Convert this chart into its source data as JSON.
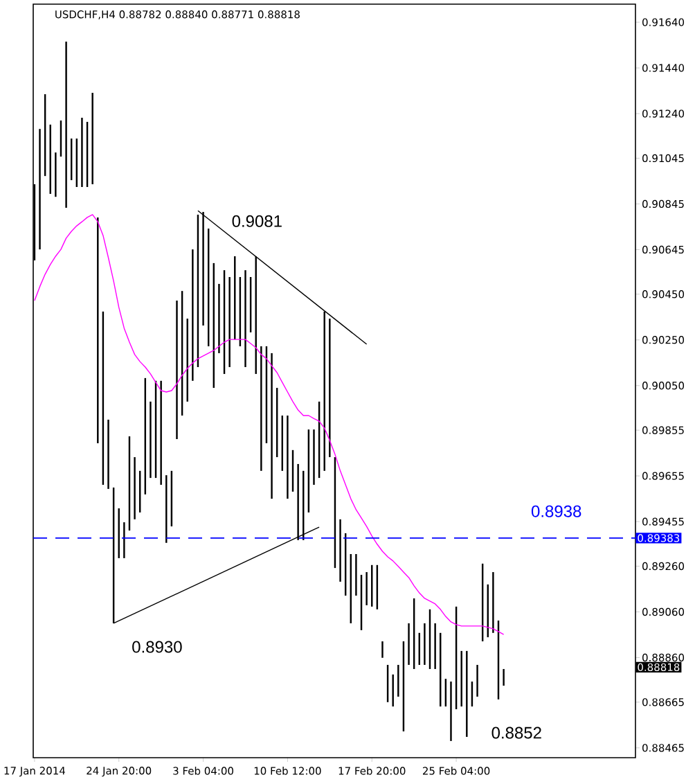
{
  "chart_data": {
    "type": "bar",
    "title": "USDCHF,H4 0.88782 0.88840 0.88771 0.88818",
    "categories": [
      "17 Jan 2014",
      null,
      null,
      null,
      null,
      null,
      null,
      null,
      null,
      null,
      null,
      null,
      null,
      null,
      null,
      null,
      "24 Jan 20:00",
      null,
      null,
      null,
      null,
      null,
      null,
      null,
      null,
      null,
      null,
      null,
      null,
      null,
      null,
      null,
      "3 Feb 04:00",
      null,
      null,
      null,
      null,
      null,
      null,
      null,
      null,
      null,
      null,
      null,
      null,
      null,
      null,
      null,
      "10 Feb 12:00",
      null,
      null,
      null,
      null,
      null,
      null,
      null,
      null,
      null,
      null,
      null,
      null,
      null,
      null,
      null,
      "17 Feb 20:00",
      null,
      null,
      null,
      null,
      null,
      null,
      null,
      null,
      null,
      null,
      null,
      null,
      null,
      null,
      null,
      "25 Feb 04:00",
      null,
      null,
      null,
      null,
      null,
      null,
      null,
      null,
      null
    ],
    "series": [
      {
        "color": "#000000",
        "base": [
          0.90598,
          0.90646,
          0.90967,
          0.90889,
          0.90876,
          0.91052,
          0.90828,
          0.90949,
          0.90919,
          0.90919,
          0.90919,
          0.90931,
          0.89798,
          0.89616,
          0.89598,
          0.8901,
          0.89295,
          0.89295,
          0.89416,
          0.89465,
          0.89495,
          0.89574,
          0.89646,
          0.89646,
          0.89616,
          0.89362,
          0.89434,
          0.89816,
          0.89919,
          0.8998,
          0.90071,
          0.90131,
          0.90313,
          0.90222,
          0.9004,
          0.90192,
          0.90101,
          0.90131,
          0.90252,
          0.90222,
          0.90131,
          0.90283,
          0.90101,
          0.89677,
          0.89798,
          0.89555,
          0.89737,
          0.89677,
          0.89555,
          0.89586,
          0.89374,
          0.89374,
          0.89495,
          0.89616,
          0.89646,
          0.89677,
          0.89737,
          0.89252,
          0.89192,
          0.89131,
          0.8901,
          0.89131,
          0.8898,
          0.89089,
          0.89083,
          0.89071,
          0.88859,
          0.88665,
          0.88646,
          0.88689,
          0.88537,
          0.88828,
          0.8881,
          0.88828,
          0.88828,
          0.8881,
          0.8881,
          0.88646,
          0.88646,
          0.88495,
          0.88634,
          0.88646,
          0.88513,
          0.88646,
          0.88689,
          0.88931,
          0.88949,
          0.88968,
          0.88677,
          0.88737
        ],
        "values": [
          0.00333,
          0.00527,
          0.00358,
          0.00303,
          0.00194,
          0.00158,
          0.00727,
          0.00182,
          0.00212,
          0.00303,
          0.00285,
          0.004,
          0.00988,
          0.00758,
          0.00303,
          0.00594,
          0.00218,
          0.00157,
          0.00412,
          0.00272,
          0.00182,
          0.00509,
          0.00334,
          0.00425,
          0.00455,
          0.00296,
          0.00243,
          0.00606,
          0.00545,
          0.00363,
          0.00575,
          0.00667,
          0.00497,
          0.00515,
          0.00546,
          0.00303,
          0.00454,
          0.00394,
          0.00364,
          0.00303,
          0.00424,
          0.00242,
          0.00515,
          0.00545,
          0.00424,
          0.00637,
          0.00303,
          0.00242,
          0.00364,
          0.00182,
          0.00333,
          0.00303,
          0.00363,
          0.00242,
          0.00334,
          0.00697,
          0.00606,
          0.00485,
          0.00273,
          0.00273,
          0.00303,
          0.00182,
          0.00242,
          0.00145,
          0.00182,
          0.00194,
          0.00072,
          0.00163,
          0.0014,
          0.00139,
          0.00394,
          0.00182,
          0.00309,
          0.0014,
          0.00182,
          0.00261,
          0.002,
          0.00322,
          0.00121,
          0.0026,
          0.00449,
          0.00243,
          0.00376,
          0.00109,
          0.00139,
          0.0034,
          0.00231,
          0.00266,
          0.00345,
          0.00073
        ]
      },
      {
        "type": "line",
        "color": "#ff00ff",
        "values": [
          0.90422,
          0.90483,
          0.90537,
          0.9058,
          0.90616,
          0.90646,
          0.90695,
          0.90725,
          0.90749,
          0.90767,
          0.90786,
          0.90798,
          0.90767,
          0.90707,
          0.9061,
          0.90507,
          0.90392,
          0.90301,
          0.9024,
          0.90186,
          0.90155,
          0.90131,
          0.90101,
          0.90064,
          0.90028,
          0.90022,
          0.90028,
          0.90058,
          0.90095,
          0.90125,
          0.90149,
          0.90168,
          0.9018,
          0.90192,
          0.90204,
          0.90222,
          0.9024,
          0.90252,
          0.90252,
          0.90252,
          0.90252,
          0.90234,
          0.90216,
          0.90186,
          0.90168,
          0.90137,
          0.90107,
          0.90064,
          0.90022,
          0.8998,
          0.89943,
          0.89919,
          0.89919,
          0.89906,
          0.89894,
          0.89864,
          0.8981,
          0.89749,
          0.89677,
          0.89616,
          0.89555,
          0.89507,
          0.89471,
          0.89434,
          0.89392,
          0.89356,
          0.89325,
          0.89301,
          0.89283,
          0.89259,
          0.89234,
          0.8921,
          0.89174,
          0.89143,
          0.89119,
          0.89107,
          0.89095,
          0.89071,
          0.8904,
          0.89016,
          0.89004,
          0.88998,
          0.88998,
          0.88998,
          0.88998,
          0.88998,
          0.88992,
          0.88986,
          0.88974,
          0.88961
        ]
      },
      {
        "type": "line",
        "color": "#000000",
        "values": [
          null,
          null,
          null,
          null,
          null,
          null,
          null,
          null,
          null,
          null,
          null,
          null,
          null,
          null,
          null,
          null,
          null,
          null,
          null,
          null,
          null,
          null,
          null,
          null,
          null,
          null,
          null,
          null,
          null,
          null,
          null,
          0.90815,
          null,
          null,
          null,
          null,
          null,
          null,
          null,
          null,
          null,
          null,
          null,
          null,
          null,
          null,
          null,
          null,
          null,
          null,
          null,
          null,
          null,
          null,
          null,
          null,
          null,
          null,
          null,
          null,
          null,
          null,
          null,
          0.90231,
          null,
          null,
          null,
          null,
          null,
          null,
          null,
          null,
          null,
          null,
          null,
          null,
          null,
          null,
          null,
          null,
          null,
          null,
          null,
          null,
          null,
          null,
          null,
          null,
          null,
          null
        ]
      },
      {
        "type": "line",
        "color": "#000000",
        "values": [
          null,
          null,
          null,
          null,
          null,
          null,
          null,
          null,
          null,
          null,
          null,
          null,
          null,
          null,
          null,
          0.8901,
          null,
          null,
          null,
          null,
          null,
          null,
          null,
          null,
          null,
          null,
          null,
          null,
          null,
          null,
          null,
          null,
          null,
          null,
          null,
          null,
          null,
          null,
          null,
          null,
          null,
          null,
          null,
          null,
          null,
          null,
          null,
          null,
          null,
          null,
          null,
          null,
          null,
          null,
          0.89431,
          null,
          null,
          null,
          null,
          null,
          null,
          null,
          null,
          null,
          null,
          null,
          null,
          null,
          null,
          null,
          null,
          null,
          null,
          null,
          null,
          null,
          null,
          null,
          null,
          null,
          null,
          null,
          null,
          null,
          null,
          null,
          null,
          null,
          null,
          null
        ]
      }
    ],
    "ylim": [
      0.88422,
      0.91719
    ],
    "yticks": [
      {
        "value": 0.9164,
        "label": "0.91640"
      },
      {
        "value": 0.9144,
        "label": "0.91440"
      },
      {
        "value": 0.9124,
        "label": "0.91240"
      },
      0.91045,
      0.90845,
      0.90645,
      {
        "value": 0.9045,
        "label": "0.90450"
      },
      {
        "value": 0.9025,
        "label": "0.90250"
      },
      {
        "value": 0.9005,
        "label": "0.90050"
      },
      0.89855,
      0.89655,
      0.89455,
      {
        "value": 0.8926,
        "label": "0.89260"
      },
      {
        "value": 0.8906,
        "label": "0.89060"
      },
      {
        "value": 0.8886,
        "label": "0.88860"
      },
      0.88665,
      0.88465
    ],
    "ref_lines": [
      {
        "axis": "y",
        "value": 0.89383,
        "label": "0.89383",
        "color": "#0000ff",
        "line_style": "dashed"
      }
    ],
    "annotations": [
      "0.9081",
      "0.8930",
      "0.8938",
      "0.8852",
      "0.88818"
    ]
  }
}
